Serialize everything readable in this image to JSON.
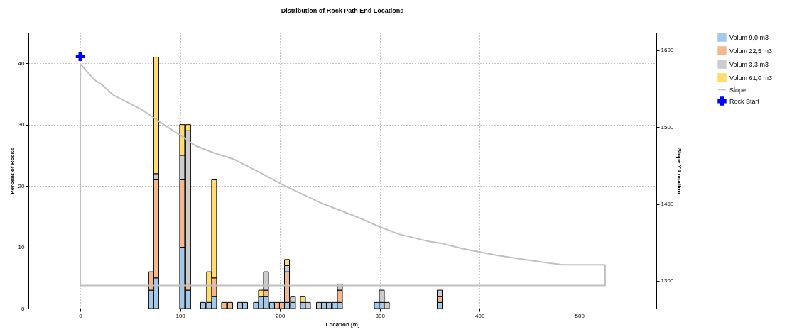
{
  "chart_data": {
    "type": "bar",
    "title": "Distribution of Rock Path End Locations",
    "xlabel": "Location [m]",
    "ylabel": "Percent of Rocks",
    "y2label": "Slope Y Location",
    "stacked": true,
    "grid": true,
    "legend": "right",
    "x": [
      71,
      76,
      102,
      108,
      123,
      129,
      134,
      144,
      150,
      160,
      165,
      176,
      181,
      186,
      192,
      197,
      202,
      207,
      213,
      223,
      228,
      239,
      244,
      249,
      255,
      260,
      297,
      302,
      307,
      360
    ],
    "xlim": [
      -52,
      577
    ],
    "xticks": [
      0,
      100,
      200,
      300,
      400,
      500
    ],
    "ylim": [
      0,
      45
    ],
    "yticks": [
      0,
      10,
      20,
      30,
      40
    ],
    "y2lim": [
      1264,
      1623
    ],
    "y2ticks": [
      1300,
      1400,
      1500,
      1600
    ],
    "series": [
      {
        "name": "Volum 9,0 m3",
        "color": "#a4c8e8",
        "values": [
          3,
          5,
          10,
          3,
          1,
          1,
          2,
          null,
          null,
          1,
          1,
          1,
          2,
          2,
          1,
          null,
          null,
          1,
          1,
          1,
          null,
          null,
          1,
          1,
          1,
          1,
          1,
          1,
          null,
          1
        ]
      },
      {
        "name": "Volum 22,5 m3",
        "color": "#f5b88e",
        "values": [
          3,
          16,
          11,
          1,
          null,
          null,
          3,
          1,
          1,
          null,
          null,
          null,
          null,
          1,
          null,
          1,
          1,
          5,
          null,
          null,
          null,
          null,
          null,
          null,
          null,
          2,
          null,
          null,
          null,
          1
        ]
      },
      {
        "name": "Volum 3,3 m3",
        "color": "#cccccc",
        "values": [
          null,
          1,
          4,
          25,
          null,
          null,
          null,
          null,
          null,
          null,
          null,
          null,
          null,
          3,
          null,
          null,
          null,
          1,
          1,
          null,
          1,
          1,
          null,
          null,
          null,
          1,
          null,
          2,
          1,
          1
        ]
      },
      {
        "name": "Volum 61,0 m3",
        "color": "#ffdc6e",
        "values": [
          null,
          19,
          5,
          1,
          null,
          5,
          16,
          null,
          null,
          null,
          null,
          null,
          1,
          null,
          null,
          null,
          null,
          1,
          null,
          1,
          null,
          null,
          null,
          null,
          null,
          null,
          null,
          null,
          null,
          null
        ]
      },
      {
        "name": "Slope",
        "type": "line",
        "axis": "y2",
        "color": "#c0c0c0",
        "x": [
          0,
          0,
          4.3,
          13.8,
          20.9,
          32.9,
          61.4,
          82.9,
          104.3,
          115,
          132.9,
          154.3,
          182.9,
          204.3,
          240,
          275.7,
          297,
          318.6,
          347,
          361.4,
          382.9,
          418.6,
          454.3,
          482.9,
          525.7
        ],
        "values": [
          1294,
          1582,
          1576,
          1562,
          1556,
          1542,
          1523,
          1504,
          1486,
          1476,
          1467,
          1458,
          1439,
          1424,
          1402,
          1384,
          1372,
          1361,
          1352,
          1349,
          1342,
          1333,
          1326,
          1321,
          1321
        ]
      },
      {
        "type": "line",
        "axis": "y2",
        "color": "#c0c0c0",
        "x": [
          0,
          525.7,
          525.7
        ],
        "values": [
          1294,
          1294,
          1321
        ]
      },
      {
        "name": "Rock Start",
        "type": "scatter",
        "axis": "y2",
        "marker": "cross",
        "color": "#0000ff",
        "x": [
          0
        ],
        "values": [
          1592
        ]
      }
    ]
  }
}
